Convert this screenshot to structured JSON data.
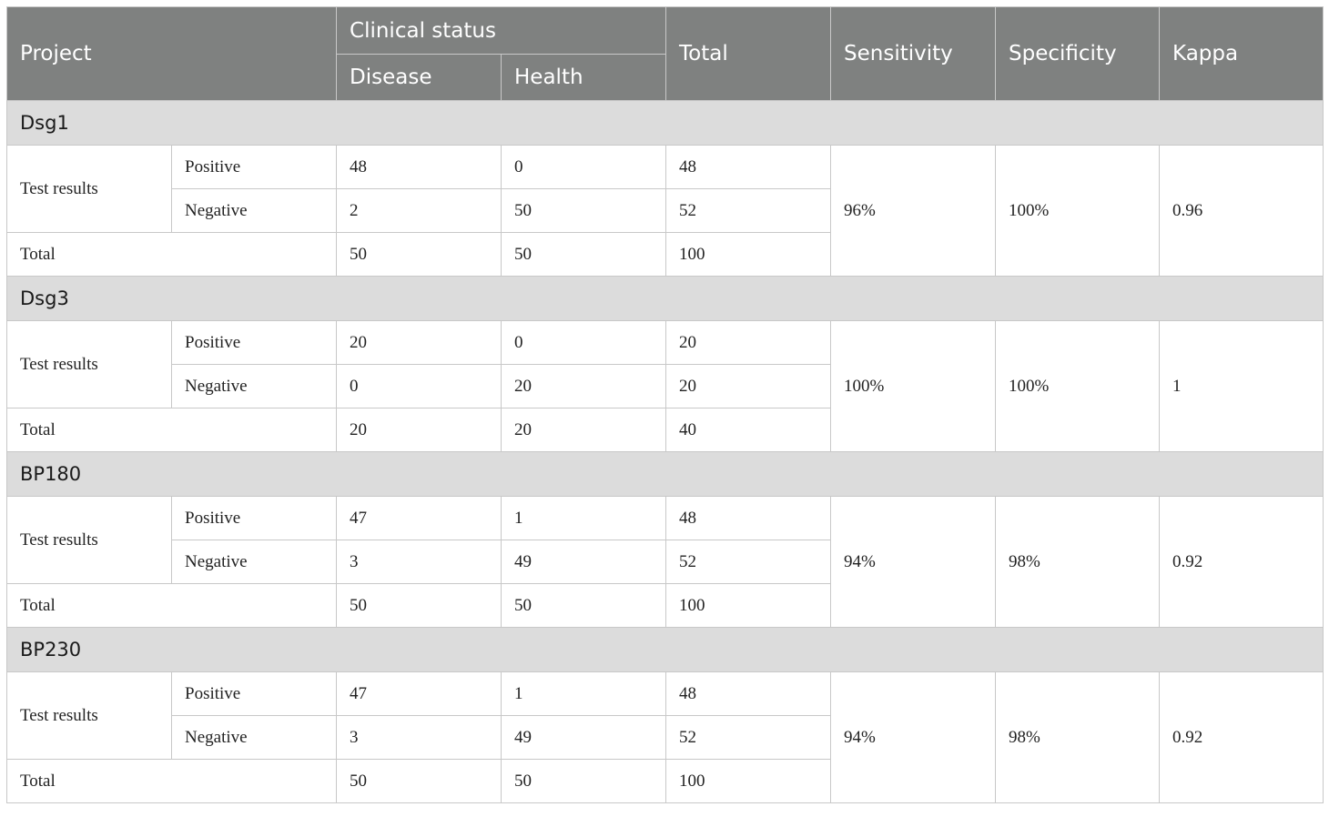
{
  "header": {
    "project": "Project",
    "clinical_status": "Clinical status",
    "disease": "Disease",
    "health": "Health",
    "total": "Total",
    "sensitivity": "Sensitivity",
    "specificity": "Specificity",
    "kappa": "Kappa"
  },
  "groups": [
    {
      "name": "Dsg1",
      "test_label": "Test results",
      "positive_label": "Positive",
      "negative_label": "Negative",
      "total_label": "Total",
      "positive": {
        "disease": "48",
        "health": "0",
        "total": "48"
      },
      "negative": {
        "disease": "2",
        "health": "50",
        "total": "52"
      },
      "totals": {
        "disease": "50",
        "health": "50",
        "total": "100"
      },
      "sensitivity": "96%",
      "specificity": "100%",
      "kappa": "0.96"
    },
    {
      "name": "Dsg3",
      "test_label": "Test results",
      "positive_label": "Positive",
      "negative_label": "Negative",
      "total_label": "Total",
      "positive": {
        "disease": "20",
        "health": "0",
        "total": "20"
      },
      "negative": {
        "disease": "0",
        "health": "20",
        "total": "20"
      },
      "totals": {
        "disease": "20",
        "health": "20",
        "total": "40"
      },
      "sensitivity": "100%",
      "specificity": "100%",
      "kappa": "1"
    },
    {
      "name": "BP180",
      "test_label": "Test results",
      "positive_label": "Positive",
      "negative_label": "Negative",
      "total_label": "Total",
      "positive": {
        "disease": "47",
        "health": "1",
        "total": "48"
      },
      "negative": {
        "disease": "3",
        "health": "49",
        "total": "52"
      },
      "totals": {
        "disease": "50",
        "health": "50",
        "total": "100"
      },
      "sensitivity": "94%",
      "specificity": "98%",
      "kappa": "0.92"
    },
    {
      "name": "BP230",
      "test_label": "Test results",
      "positive_label": "Positive",
      "negative_label": "Negative",
      "total_label": "Total",
      "positive": {
        "disease": "47",
        "health": "1",
        "total": "48"
      },
      "negative": {
        "disease": "3",
        "health": "49",
        "total": "52"
      },
      "totals": {
        "disease": "50",
        "health": "50",
        "total": "100"
      },
      "sensitivity": "94%",
      "specificity": "98%",
      "kappa": "0.92"
    }
  ]
}
